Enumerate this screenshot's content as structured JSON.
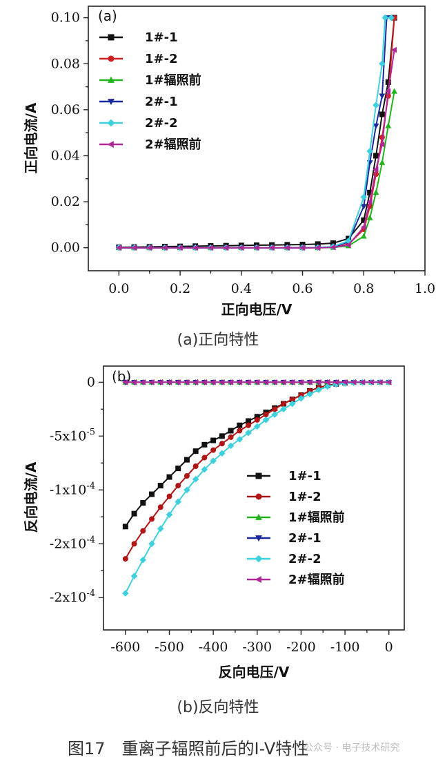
{
  "chart_data": [
    {
      "type": "line",
      "panel_label": "(a)",
      "caption": "(a)正向特性",
      "xlabel": "正向电压/V",
      "ylabel": "正向电流/A",
      "xlim": [
        -0.1,
        1.0
      ],
      "ylim": [
        -0.01,
        0.105
      ],
      "xticks": [
        0.0,
        0.2,
        0.4,
        0.6,
        0.8,
        1.0
      ],
      "xtick_labels": [
        "0.0",
        "0.2",
        "0.4",
        "0.6",
        "0.8",
        "1.0"
      ],
      "yticks": [
        0.0,
        0.02,
        0.04,
        0.06,
        0.08,
        0.1
      ],
      "ytick_labels": [
        "0.00",
        "0.02",
        "0.04",
        "0.06",
        "0.08",
        "0.10"
      ],
      "legend_position": "top-left",
      "series": [
        {
          "name": "1#-1",
          "color": "#111111",
          "marker": "square",
          "x": [
            0,
            0.05,
            0.1,
            0.15,
            0.2,
            0.25,
            0.3,
            0.35,
            0.4,
            0.45,
            0.5,
            0.55,
            0.6,
            0.65,
            0.7,
            0.75,
            0.8,
            0.82,
            0.84,
            0.86,
            0.88,
            0.9
          ],
          "y": [
            0.0002,
            0.0003,
            0.0004,
            0.0005,
            0.0006,
            0.0007,
            0.0008,
            0.0009,
            0.001,
            0.0011,
            0.0012,
            0.0013,
            0.0014,
            0.0016,
            0.002,
            0.004,
            0.012,
            0.024,
            0.04,
            0.058,
            0.072,
            0.1
          ]
        },
        {
          "name": "1#-2",
          "color": "#cc1f1f",
          "marker": "circle",
          "x": [
            0,
            0.05,
            0.1,
            0.15,
            0.2,
            0.25,
            0.3,
            0.35,
            0.4,
            0.45,
            0.5,
            0.55,
            0.6,
            0.65,
            0.7,
            0.75,
            0.8,
            0.82,
            0.84,
            0.86,
            0.88,
            0.9
          ],
          "y": [
            0,
            0,
            0,
            0,
            0,
            0,
            0,
            0,
            0,
            0,
            0,
            0,
            0,
            0.0001,
            0.0003,
            0.0015,
            0.008,
            0.018,
            0.032,
            0.048,
            0.066,
            0.1
          ]
        },
        {
          "name": "1#辐照前",
          "color": "#22b41e",
          "marker": "triangle-up",
          "x": [
            0,
            0.05,
            0.1,
            0.15,
            0.2,
            0.25,
            0.3,
            0.35,
            0.4,
            0.45,
            0.5,
            0.55,
            0.6,
            0.65,
            0.7,
            0.75,
            0.8,
            0.82,
            0.84,
            0.86,
            0.88,
            0.9
          ],
          "y": [
            0,
            0,
            0,
            0,
            0,
            0,
            0,
            0,
            0,
            0,
            0,
            0,
            0,
            0,
            0.0001,
            0.0008,
            0.005,
            0.013,
            0.024,
            0.037,
            0.053,
            0.068
          ]
        },
        {
          "name": "2#-1",
          "color": "#1a2a9c",
          "marker": "triangle-down",
          "x": [
            0,
            0.05,
            0.1,
            0.15,
            0.2,
            0.25,
            0.3,
            0.35,
            0.4,
            0.45,
            0.5,
            0.55,
            0.6,
            0.65,
            0.7,
            0.75,
            0.8,
            0.82,
            0.84,
            0.86,
            0.875,
            0.89
          ],
          "y": [
            0,
            0,
            0,
            0,
            0,
            0,
            0,
            0,
            0,
            0,
            0,
            0,
            0,
            0.0001,
            0.0004,
            0.0025,
            0.018,
            0.037,
            0.053,
            0.066,
            0.1,
            0.1
          ]
        },
        {
          "name": "2#-2",
          "color": "#3fd0de",
          "marker": "diamond",
          "x": [
            0,
            0.05,
            0.1,
            0.15,
            0.2,
            0.25,
            0.3,
            0.35,
            0.4,
            0.45,
            0.5,
            0.55,
            0.6,
            0.65,
            0.7,
            0.75,
            0.8,
            0.82,
            0.84,
            0.86,
            0.87,
            0.89
          ],
          "y": [
            0,
            0,
            0,
            0,
            0,
            0,
            0,
            0,
            0,
            0,
            0,
            0,
            0,
            0.0001,
            0.0005,
            0.003,
            0.022,
            0.042,
            0.062,
            0.08,
            0.1,
            0.1
          ]
        },
        {
          "name": "2#辐照前",
          "color": "#b0279a",
          "marker": "triangle-left",
          "x": [
            0,
            0.05,
            0.1,
            0.15,
            0.2,
            0.25,
            0.3,
            0.35,
            0.4,
            0.45,
            0.5,
            0.55,
            0.6,
            0.65,
            0.7,
            0.75,
            0.8,
            0.82,
            0.84,
            0.86,
            0.88,
            0.9
          ],
          "y": [
            0,
            0,
            0,
            0,
            0,
            0,
            0,
            0,
            0,
            0,
            0,
            0,
            0,
            0,
            0.0002,
            0.0012,
            0.009,
            0.02,
            0.034,
            0.045,
            0.068,
            0.086
          ]
        }
      ]
    },
    {
      "type": "line",
      "panel_label": "(b)",
      "caption": "(b)反向特性",
      "xlabel": "反向电压/V",
      "ylabel": "反向电流/A",
      "xlim": [
        -650,
        35
      ],
      "ylim": [
        -0.00023,
        1.5e-05
      ],
      "xticks": [
        -600,
        -500,
        -400,
        -300,
        -200,
        -100,
        0
      ],
      "xtick_labels": [
        "-600",
        "-500",
        "-400",
        "-300",
        "-200",
        "-100",
        "0"
      ],
      "yticks": [
        0,
        -5e-05,
        -0.0001,
        -0.00015,
        -0.0002
      ],
      "ytick_labels": [
        "0",
        "-5x10-5",
        "-1x10-4",
        "-2x10-4",
        "-2x10-4"
      ],
      "legend_position": "center-right",
      "series": [
        {
          "name": "1#-1",
          "color": "#111111",
          "marker": "square",
          "x": [
            -600,
            -580,
            -560,
            -540,
            -520,
            -500,
            -480,
            -460,
            -440,
            -420,
            -400,
            -380,
            -360,
            -340,
            -320,
            -300,
            -280,
            -260,
            -240,
            -220,
            -200,
            -180,
            -160,
            -140,
            -120,
            -100
          ],
          "y": [
            -0.000134,
            -0.000122,
            -0.000112,
            -0.000104,
            -9.6e-05,
            -8.8e-05,
            -8e-05,
            -7.2e-05,
            -6.4e-05,
            -5.8e-05,
            -5.4e-05,
            -5e-05,
            -4.5e-05,
            -4e-05,
            -3.6e-05,
            -3.2e-05,
            -2.8e-05,
            -2.4e-05,
            -2e-05,
            -1.6e-05,
            -1.2e-05,
            -8e-06,
            -5e-06,
            -3e-06,
            -1.5e-06,
            -5e-07
          ]
        },
        {
          "name": "1#-2",
          "color": "#b21515",
          "marker": "circle",
          "x": [
            -600,
            -580,
            -560,
            -540,
            -520,
            -500,
            -480,
            -460,
            -440,
            -420,
            -400,
            -380,
            -360,
            -340,
            -320,
            -300,
            -280,
            -260,
            -240,
            -220,
            -200,
            -180,
            -160,
            -140,
            -120,
            -100
          ],
          "y": [
            -0.000164,
            -0.00015,
            -0.000138,
            -0.000127,
            -0.000116,
            -0.000106,
            -9.6e-05,
            -8.7e-05,
            -7.8e-05,
            -7e-05,
            -6.3e-05,
            -5.7e-05,
            -5.1e-05,
            -4.5e-05,
            -4e-05,
            -3.5e-05,
            -3e-05,
            -2.5e-05,
            -2e-05,
            -1.6e-05,
            -1.2e-05,
            -8e-06,
            -5e-06,
            -3e-06,
            -1.5e-06,
            -5e-07
          ]
        },
        {
          "name": "1#辐照前",
          "color": "#22b41e",
          "marker": "triangle-up",
          "x": [
            -600,
            -580,
            -560,
            -540,
            -520,
            -500,
            -480,
            -460,
            -440,
            -420,
            -400,
            -380,
            -360,
            -340,
            -320,
            -300,
            -280,
            -260,
            -240,
            -220,
            -200,
            -180,
            -160,
            -140,
            -120,
            -100,
            -80,
            -60,
            -40,
            -20,
            0
          ],
          "y": [
            0,
            0,
            0,
            0,
            0,
            0,
            0,
            0,
            0,
            0,
            0,
            0,
            0,
            0,
            0,
            0,
            0,
            0,
            0,
            0,
            0,
            0,
            0,
            0,
            0,
            0,
            0,
            0,
            0,
            0,
            0
          ]
        },
        {
          "name": "2#-1",
          "color": "#1a2a9c",
          "marker": "triangle-down",
          "x": [
            -600,
            -580,
            -560,
            -540,
            -520,
            -500,
            -480,
            -460,
            -440,
            -420,
            -400,
            -380,
            -360,
            -340,
            -320,
            -300,
            -280,
            -260,
            -240,
            -220,
            -200,
            -180,
            -160,
            -140,
            -120,
            -100,
            -80,
            -60,
            -40,
            -20,
            0
          ],
          "y": [
            0,
            0,
            0,
            0,
            0,
            0,
            0,
            0,
            0,
            0,
            0,
            0,
            0,
            0,
            0,
            0,
            0,
            0,
            0,
            0,
            0,
            0,
            0,
            0,
            0,
            0,
            0,
            0,
            0,
            0,
            0
          ]
        },
        {
          "name": "2#-2",
          "color": "#3fd0de",
          "marker": "diamond",
          "x": [
            -600,
            -580,
            -560,
            -540,
            -520,
            -500,
            -480,
            -460,
            -440,
            -420,
            -400,
            -380,
            -360,
            -340,
            -320,
            -300,
            -280,
            -260,
            -240,
            -220,
            -200,
            -180,
            -160,
            -140,
            -120,
            -100,
            -80,
            -60,
            -40,
            -20,
            0
          ],
          "y": [
            -0.000196,
            -0.00018,
            -0.000165,
            -0.00015,
            -0.000136,
            -0.000123,
            -0.000111,
            -0.0001,
            -9e-05,
            -8.1e-05,
            -7.3e-05,
            -6.6e-05,
            -5.9e-05,
            -5.3e-05,
            -4.7e-05,
            -4.1e-05,
            -3.5e-05,
            -3e-05,
            -2.5e-05,
            -2e-05,
            -1.5e-05,
            -1.1e-05,
            -7e-06,
            -4e-06,
            -2e-06,
            -1e-06,
            -5e-07,
            -3e-07,
            -2e-07,
            -1e-07,
            0
          ]
        },
        {
          "name": "2#辐照前",
          "color": "#b0279a",
          "marker": "triangle-left",
          "x": [
            -600,
            -580,
            -560,
            -540,
            -520,
            -500,
            -480,
            -460,
            -440,
            -420,
            -400,
            -380,
            -360,
            -340,
            -320,
            -300,
            -280,
            -260,
            -240,
            -220,
            -200,
            -180,
            -160,
            -140,
            -120,
            -100,
            -80,
            -60,
            -40,
            -20,
            0
          ],
          "y": [
            0,
            0,
            0,
            0,
            0,
            0,
            0,
            0,
            0,
            0,
            0,
            0,
            0,
            0,
            0,
            0,
            0,
            0,
            0,
            0,
            0,
            0,
            0,
            0,
            0,
            0,
            0,
            0,
            0,
            0,
            0
          ]
        }
      ]
    }
  ],
  "figure_caption": "图17　重离子辐照前后的I-V特性",
  "watermark": "公众号 · 电子技术研究"
}
